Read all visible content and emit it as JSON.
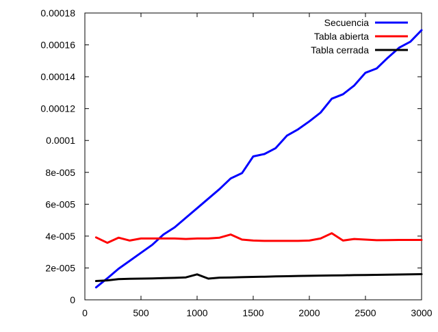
{
  "chart_data": {
    "type": "line",
    "title": "",
    "xlabel": "",
    "ylabel": "",
    "xlim": [
      0,
      3000
    ],
    "ylim": [
      0,
      0.00018
    ],
    "x_ticks": [
      {
        "value": 0,
        "label": "0"
      },
      {
        "value": 500,
        "label": "500"
      },
      {
        "value": 1000,
        "label": "1000"
      },
      {
        "value": 1500,
        "label": "1500"
      },
      {
        "value": 2000,
        "label": "2000"
      },
      {
        "value": 2500,
        "label": "2500"
      },
      {
        "value": 3000,
        "label": "3000"
      }
    ],
    "y_ticks": [
      {
        "value": 0,
        "label": "0"
      },
      {
        "value": 2e-05,
        "label": "2e-005"
      },
      {
        "value": 4e-05,
        "label": "4e-005"
      },
      {
        "value": 6e-05,
        "label": "6e-005"
      },
      {
        "value": 8e-05,
        "label": "8e-005"
      },
      {
        "value": 0.0001,
        "label": "0.0001"
      },
      {
        "value": 0.00012,
        "label": "0.00012"
      },
      {
        "value": 0.00014,
        "label": "0.00014"
      },
      {
        "value": 0.00016,
        "label": "0.00016"
      },
      {
        "value": 0.00018,
        "label": "0.00018"
      }
    ],
    "grid": false,
    "legend_position": "top-right",
    "x": [
      100,
      200,
      300,
      400,
      500,
      600,
      700,
      800,
      900,
      1000,
      1100,
      1200,
      1300,
      1400,
      1500,
      1600,
      1700,
      1800,
      1900,
      2000,
      2100,
      2200,
      2300,
      2400,
      2500,
      2600,
      2700,
      2800,
      2900,
      3000
    ],
    "series": [
      {
        "name": "Secuencia",
        "color": "#0000ff",
        "values": [
          7.8e-06,
          1.35e-05,
          1.95e-05,
          2.45e-05,
          2.95e-05,
          3.45e-05,
          4.1e-05,
          4.55e-05,
          5.15e-05,
          5.75e-05,
          6.35e-05,
          6.95e-05,
          7.62e-05,
          7.95e-05,
          9e-05,
          9.15e-05,
          9.52e-05,
          0.000103,
          0.000107,
          0.000112,
          0.0001175,
          0.0001262,
          0.000129,
          0.0001345,
          0.0001425,
          0.0001452,
          0.000152,
          0.0001582,
          0.000162,
          0.0001692
        ]
      },
      {
        "name": "Tabla abierta",
        "color": "#ff0000",
        "values": [
          3.92e-05,
          3.58e-05,
          3.9e-05,
          3.72e-05,
          3.85e-05,
          3.85e-05,
          3.85e-05,
          3.85e-05,
          3.82e-05,
          3.85e-05,
          3.85e-05,
          3.9e-05,
          4.1e-05,
          3.78e-05,
          3.72e-05,
          3.7e-05,
          3.7e-05,
          3.7e-05,
          3.7e-05,
          3.72e-05,
          3.85e-05,
          4.18e-05,
          3.72e-05,
          3.82e-05,
          3.78e-05,
          3.74e-05,
          3.75e-05,
          3.76e-05,
          3.76e-05,
          3.76e-05
        ]
      },
      {
        "name": "Tabla cerrada",
        "color": "#000000",
        "values": [
          1.18e-05,
          1.22e-05,
          1.3e-05,
          1.32e-05,
          1.33e-05,
          1.34e-05,
          1.36e-05,
          1.38e-05,
          1.41e-05,
          1.6e-05,
          1.33e-05,
          1.39e-05,
          1.4e-05,
          1.42e-05,
          1.44e-05,
          1.45e-05,
          1.47e-05,
          1.48e-05,
          1.5e-05,
          1.51e-05,
          1.52e-05,
          1.53e-05,
          1.54e-05,
          1.55e-05,
          1.56e-05,
          1.57e-05,
          1.58e-05,
          1.59e-05,
          1.6e-05,
          1.61e-05
        ]
      }
    ]
  }
}
